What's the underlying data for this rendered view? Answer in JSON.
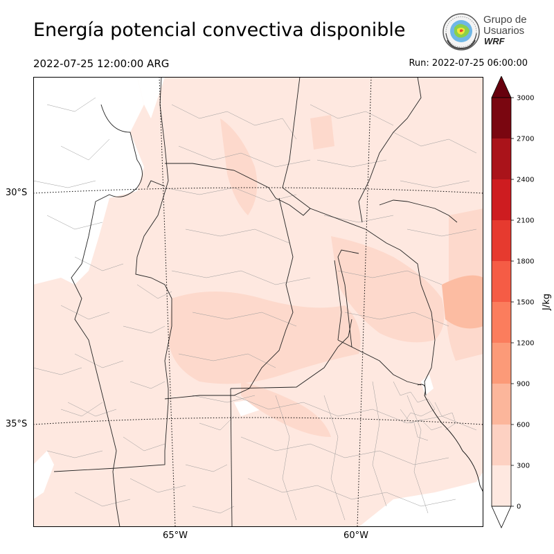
{
  "title": "Energía potencial convectiva disponible",
  "valid_time": "2022-07-25 12:00:00 ARG",
  "run_time": "Run: 2022-07-25 06:00:00",
  "logo": {
    "line1": "Grupo de",
    "line2": "Usuarios",
    "line3": "WRF",
    "icon": "wrf-globe-emblem-icon"
  },
  "map": {
    "lat_labels": [
      "30°S",
      "35°S"
    ],
    "lon_labels": [
      "65°W",
      "60°W"
    ],
    "field": "CAPE"
  },
  "chart_data": {
    "type": "heatmap",
    "colorbar": {
      "unit": "J/kg",
      "ticks": [
        "0",
        "300",
        "600",
        "900",
        "1200",
        "1500",
        "1800",
        "2100",
        "2400",
        "2700",
        "3000"
      ],
      "levels": [
        0,
        300,
        600,
        900,
        1200,
        1500,
        1800,
        2100,
        2400,
        2700,
        3000
      ],
      "colors": [
        "#fee8e0",
        "#fdd1c2",
        "#fcb69b",
        "#fc9a78",
        "#fb7d5d",
        "#f55c45",
        "#e63a2f",
        "#ce1c20",
        "#aa131a",
        "#7a0610"
      ],
      "extend": "both"
    }
  },
  "colors": {
    "under": "#ffffff",
    "over": "#67000d",
    "frame": "#000000"
  }
}
